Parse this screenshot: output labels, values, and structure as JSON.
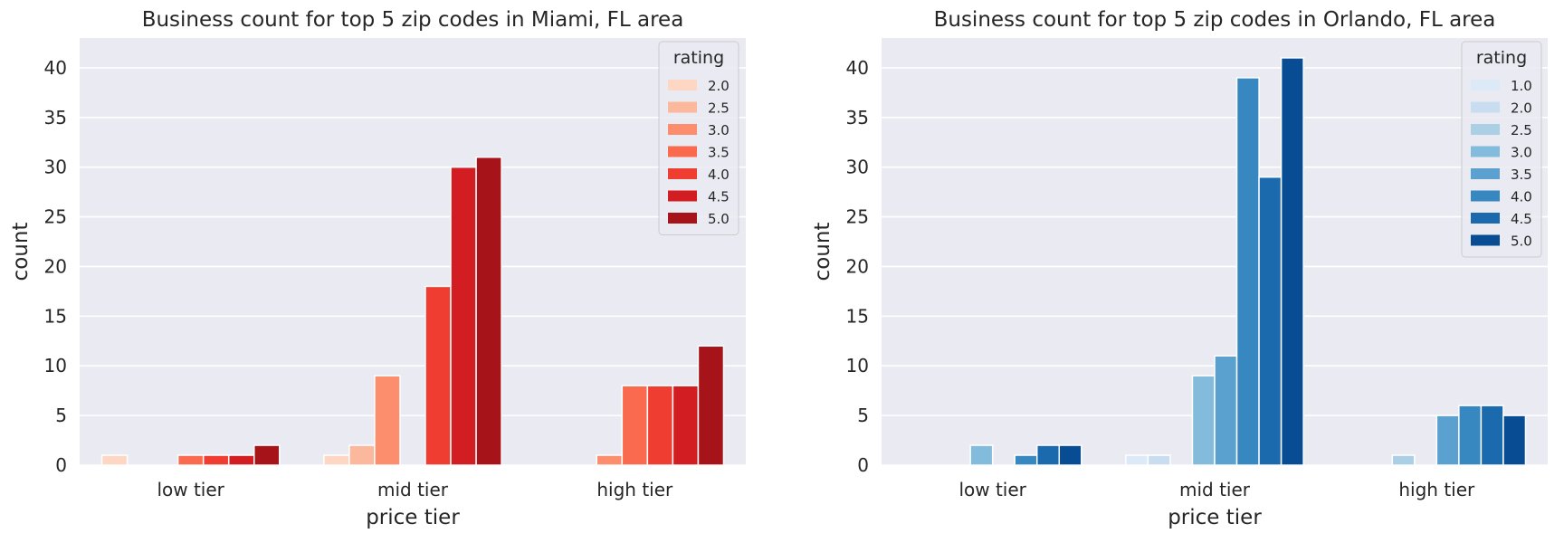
{
  "chart_data": [
    {
      "type": "bar",
      "title": "Business count for top 5 zip codes in Miami, FL area",
      "xlabel": "price tier",
      "ylabel": "count",
      "categories": [
        "low tier",
        "mid tier",
        "high tier"
      ],
      "ylim": [
        0,
        43
      ],
      "yticks": [
        0,
        5,
        10,
        15,
        20,
        25,
        30,
        35,
        40
      ],
      "grid": true,
      "legend": {
        "title": "rating",
        "placement": "top-right"
      },
      "series": [
        {
          "name": "2.0",
          "color": "#fdd6c4",
          "values": [
            1,
            1,
            0
          ]
        },
        {
          "name": "2.5",
          "color": "#fcb89c",
          "values": [
            0,
            2,
            0
          ]
        },
        {
          "name": "3.0",
          "color": "#fc8e6e",
          "values": [
            0,
            9,
            1
          ]
        },
        {
          "name": "3.5",
          "color": "#fa6a4f",
          "values": [
            1,
            0,
            8
          ]
        },
        {
          "name": "4.0",
          "color": "#ef3e31",
          "values": [
            1,
            18,
            8
          ]
        },
        {
          "name": "4.5",
          "color": "#d21d23",
          "values": [
            1,
            30,
            8
          ]
        },
        {
          "name": "5.0",
          "color": "#a6141a",
          "values": [
            2,
            31,
            12
          ]
        }
      ]
    },
    {
      "type": "bar",
      "title": "Business count for top 5 zip codes in Orlando, FL area",
      "xlabel": "price tier",
      "ylabel": "count",
      "categories": [
        "low tier",
        "mid tier",
        "high tier"
      ],
      "ylim": [
        0,
        43
      ],
      "yticks": [
        0,
        5,
        10,
        15,
        20,
        25,
        30,
        35,
        40
      ],
      "grid": true,
      "legend": {
        "title": "rating",
        "placement": "top-right"
      },
      "series": [
        {
          "name": "1.0",
          "color": "#dce9f6",
          "values": [
            0,
            1,
            0
          ]
        },
        {
          "name": "2.0",
          "color": "#c9ddf0",
          "values": [
            0,
            1,
            0
          ]
        },
        {
          "name": "2.5",
          "color": "#abcfe5",
          "values": [
            0,
            0,
            1
          ]
        },
        {
          "name": "3.0",
          "color": "#82bbdb",
          "values": [
            2,
            9,
            0
          ]
        },
        {
          "name": "3.5",
          "color": "#5aa1cf",
          "values": [
            0,
            11,
            5
          ]
        },
        {
          "name": "4.0",
          "color": "#3787c0",
          "values": [
            1,
            39,
            6
          ]
        },
        {
          "name": "4.5",
          "color": "#1c6aae",
          "values": [
            2,
            29,
            6
          ]
        },
        {
          "name": "5.0",
          "color": "#084d93",
          "values": [
            2,
            41,
            5
          ]
        }
      ]
    }
  ]
}
